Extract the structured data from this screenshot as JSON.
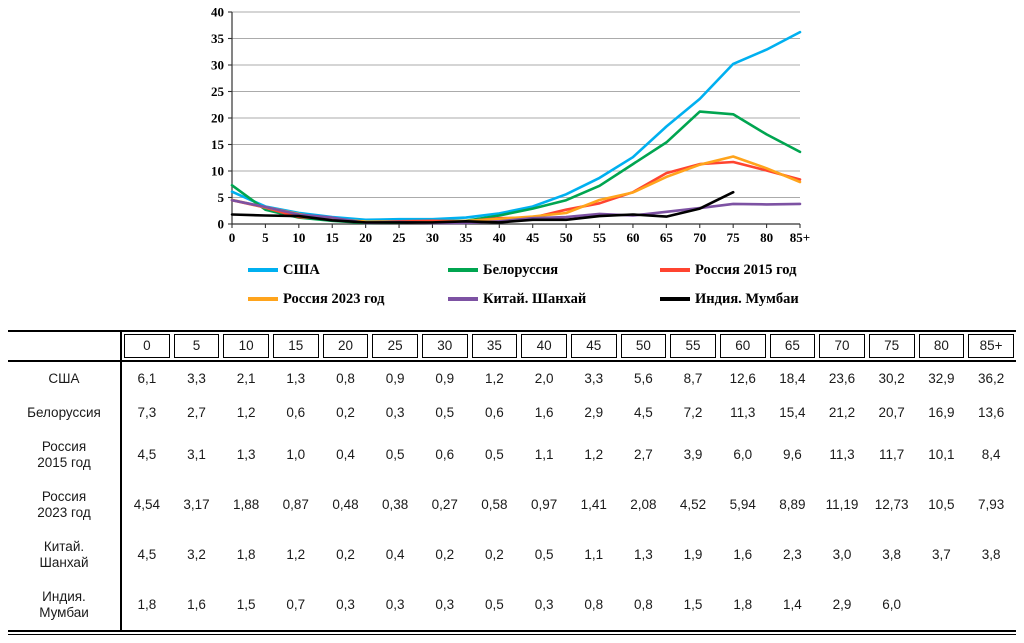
{
  "chart_data": {
    "type": "line",
    "title": "",
    "xlabel": "",
    "ylabel": "",
    "ylim": [
      0,
      40
    ],
    "ytick_step": 5,
    "grid": true,
    "gridline_color": "#ababab",
    "legend_position": "bottom",
    "categories": [
      "0",
      "5",
      "10",
      "15",
      "20",
      "25",
      "30",
      "35",
      "40",
      "45",
      "50",
      "55",
      "60",
      "65",
      "70",
      "75",
      "80",
      "85+"
    ],
    "series": [
      {
        "name": "США",
        "color": "#00B0F0",
        "values": [
          6.1,
          3.3,
          2.1,
          1.3,
          0.8,
          0.9,
          0.9,
          1.2,
          2.0,
          3.3,
          5.6,
          8.7,
          12.6,
          18.4,
          23.6,
          30.2,
          32.9,
          36.2
        ]
      },
      {
        "name": "Белоруссия",
        "color": "#00A550",
        "values": [
          7.3,
          2.7,
          1.2,
          0.6,
          0.2,
          0.3,
          0.5,
          0.6,
          1.6,
          2.9,
          4.5,
          7.2,
          11.3,
          15.4,
          21.2,
          20.7,
          16.9,
          13.6
        ]
      },
      {
        "name": "Россия 2015 год",
        "color": "#FF4430",
        "values": [
          4.5,
          3.1,
          1.3,
          1.0,
          0.4,
          0.5,
          0.6,
          0.5,
          1.1,
          1.2,
          2.7,
          3.9,
          6.0,
          9.6,
          11.3,
          11.7,
          10.1,
          8.4
        ]
      },
      {
        "name": "Россия 2023 год",
        "color": "#FFA41C",
        "values": [
          4.54,
          3.17,
          1.88,
          0.87,
          0.48,
          0.38,
          0.27,
          0.58,
          0.97,
          1.41,
          2.08,
          4.52,
          5.94,
          8.89,
          11.19,
          12.73,
          10.5,
          7.93
        ]
      },
      {
        "name": "Китай. Шанхай",
        "color": "#7D52A3",
        "values": [
          4.5,
          3.2,
          1.8,
          1.2,
          0.2,
          0.4,
          0.2,
          0.2,
          0.5,
          1.1,
          1.3,
          1.9,
          1.6,
          2.3,
          3.0,
          3.8,
          3.7,
          3.8
        ]
      },
      {
        "name": "Индия. Мумбаи",
        "color": "#000000",
        "values": [
          1.8,
          1.6,
          1.5,
          0.7,
          0.3,
          0.3,
          0.3,
          0.5,
          0.3,
          0.8,
          0.8,
          1.5,
          1.8,
          1.4,
          2.9,
          6.0,
          null,
          null
        ]
      }
    ]
  },
  "table": {
    "columns": [
      "0",
      "5",
      "10",
      "15",
      "20",
      "25",
      "30",
      "35",
      "40",
      "45",
      "50",
      "55",
      "60",
      "65",
      "70",
      "75",
      "80",
      "85+"
    ],
    "rows": [
      {
        "label": "США",
        "values": [
          "6,1",
          "3,3",
          "2,1",
          "1,3",
          "0,8",
          "0,9",
          "0,9",
          "1,2",
          "2,0",
          "3,3",
          "5,6",
          "8,7",
          "12,6",
          "18,4",
          "23,6",
          "30,2",
          "32,9",
          "36,2"
        ]
      },
      {
        "label": "Белоруссия",
        "values": [
          "7,3",
          "2,7",
          "1,2",
          "0,6",
          "0,2",
          "0,3",
          "0,5",
          "0,6",
          "1,6",
          "2,9",
          "4,5",
          "7,2",
          "11,3",
          "15,4",
          "21,2",
          "20,7",
          "16,9",
          "13,6"
        ]
      },
      {
        "label": "Россия\n2015 год",
        "values": [
          "4,5",
          "3,1",
          "1,3",
          "1,0",
          "0,4",
          "0,5",
          "0,6",
          "0,5",
          "1,1",
          "1,2",
          "2,7",
          "3,9",
          "6,0",
          "9,6",
          "11,3",
          "11,7",
          "10,1",
          "8,4"
        ]
      },
      {
        "label": "Россия\n2023 год",
        "values": [
          "4,54",
          "3,17",
          "1,88",
          "0,87",
          "0,48",
          "0,38",
          "0,27",
          "0,58",
          "0,97",
          "1,41",
          "2,08",
          "4,52",
          "5,94",
          "8,89",
          "11,19",
          "12,73",
          "10,5",
          "7,93"
        ]
      },
      {
        "label": "Китай.\nШанхай",
        "values": [
          "4,5",
          "3,2",
          "1,8",
          "1,2",
          "0,2",
          "0,4",
          "0,2",
          "0,2",
          "0,5",
          "1,1",
          "1,3",
          "1,9",
          "1,6",
          "2,3",
          "3,0",
          "3,8",
          "3,7",
          "3,8"
        ]
      },
      {
        "label": "Индия.\nМумбаи",
        "values": [
          "1,8",
          "1,6",
          "1,5",
          "0,7",
          "0,3",
          "0,3",
          "0,3",
          "0,5",
          "0,3",
          "0,8",
          "0,8",
          "1,5",
          "1,8",
          "1,4",
          "2,9",
          "6,0",
          "",
          ""
        ]
      }
    ]
  }
}
